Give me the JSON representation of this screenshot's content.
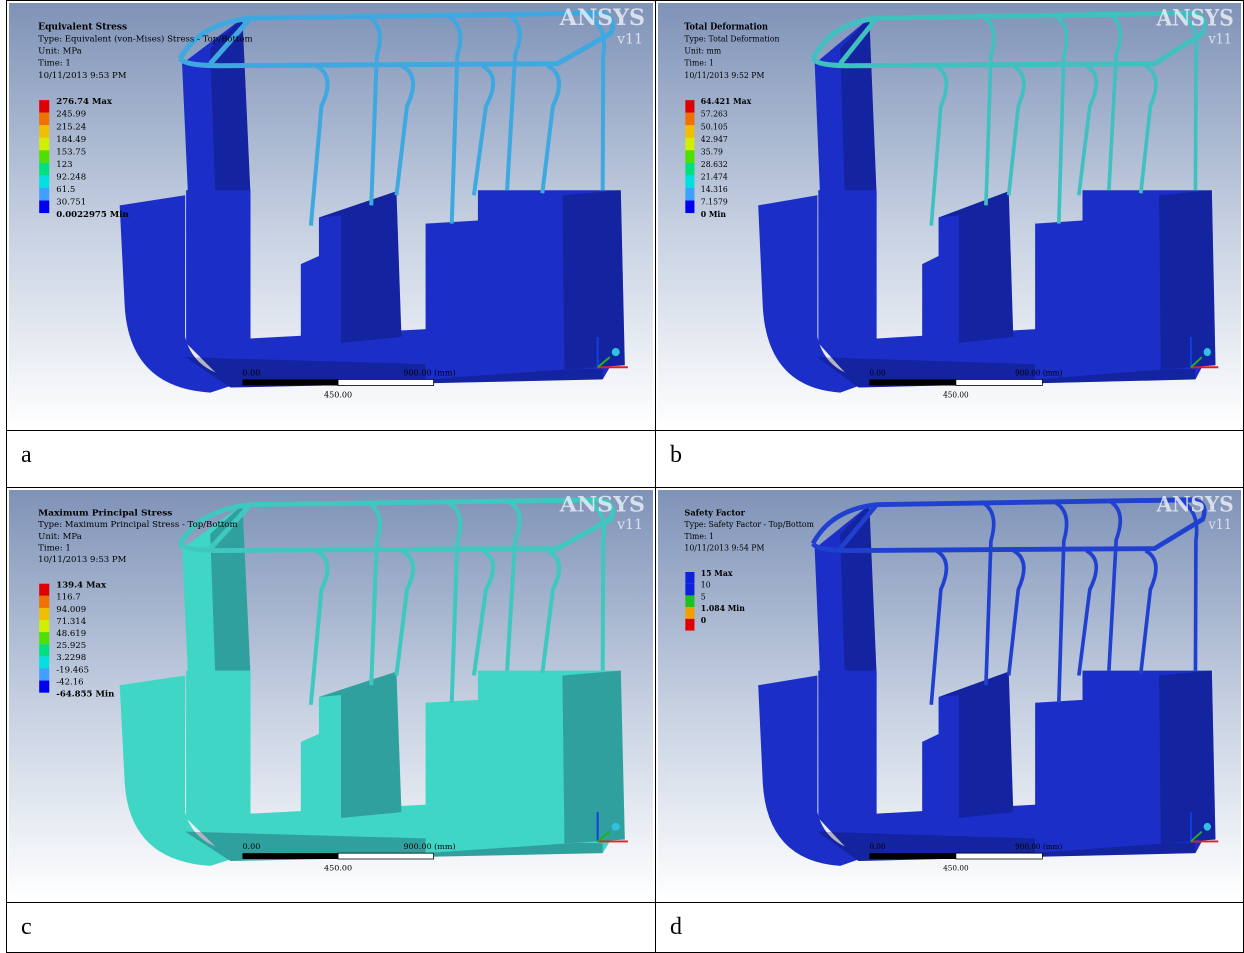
{
  "panels": [
    {
      "label": "a",
      "title": "Equivalent Stress",
      "lines": [
        "Type: Equivalent (von-Mises) Stress - Top/Bottom",
        "Unit: MPa",
        "Time: 1",
        "10/11/2013 9:53 PM"
      ],
      "legend": [
        "276.74 Max",
        "245.99",
        "215.24",
        "184.49",
        "153.75",
        "123",
        "92.248",
        "61.5",
        "30.751",
        "0.0022975 Min"
      ],
      "legend_colors": [
        "#e00000",
        "#f07000",
        "#f0c000",
        "#d0f000",
        "#50e000",
        "#00e080",
        "#00e0e0",
        "#40a0ff",
        "#0000f0"
      ],
      "model_color": "#1b2fc8",
      "tube_color": "#3fa8e0",
      "scale": [
        "0.00",
        "450.00",
        "900.00 (mm)"
      ],
      "logo": "ANSYS",
      "version": "v11"
    },
    {
      "label": "b",
      "title": "Total Deformation",
      "lines": [
        "Type: Total Deformation",
        "Unit: mm",
        "Time: 1",
        "10/11/2013 9:52 PM"
      ],
      "legend": [
        "64.421 Max",
        "57.263",
        "50.105",
        "42.947",
        "35.79",
        "28.632",
        "21.474",
        "14.316",
        "7.1579",
        "0 Min"
      ],
      "legend_colors": [
        "#e00000",
        "#f07000",
        "#f0c000",
        "#d0f000",
        "#50e000",
        "#00e080",
        "#00e0e0",
        "#40a0ff",
        "#0000f0"
      ],
      "model_color": "#1b2fc8",
      "tube_color": "#40c0c0",
      "scale": [
        "0.00",
        "450.00",
        "900.00 (mm)"
      ],
      "logo": "ANSYS",
      "version": "v11"
    },
    {
      "label": "c",
      "title": "Maximum Principal Stress",
      "lines": [
        "Type: Maximum Principal Stress - Top/Bottom",
        "Unit: MPa",
        "Time: 1",
        "10/11/2013 9:53 PM"
      ],
      "legend": [
        "139.4 Max",
        "116.7",
        "94.009",
        "71.314",
        "48.619",
        "25.925",
        "3.2298",
        "-19.465",
        "-42.16",
        "-64.855 Min"
      ],
      "legend_colors": [
        "#e00000",
        "#f07000",
        "#f0c000",
        "#d0f000",
        "#50e000",
        "#00e080",
        "#00e0e0",
        "#40a0ff",
        "#0000f0"
      ],
      "model_color": "#3fd6c6",
      "tube_color": "#3fc8c0",
      "scale": [
        "0.00",
        "450.00",
        "900.00 (mm)"
      ],
      "logo": "ANSYS",
      "version": "v11"
    },
    {
      "label": "d",
      "title": "Safety Factor",
      "lines": [
        "Type: Safety Factor - Top/Bottom",
        "Time: 1",
        "10/11/2013 9:54 PM"
      ],
      "legend": [
        "15 Max",
        "10",
        "5",
        "1.084 Min",
        "0"
      ],
      "legend_colors": [
        "#1020e0",
        "#1020e0",
        "#20c020",
        "#f0a000",
        "#e00000"
      ],
      "model_color": "#1b2fc8",
      "tube_color": "#2040d0",
      "scale": [
        "0.00",
        "450.00",
        "900.00 (mm)"
      ],
      "logo": "ANSYS",
      "version": "v11"
    }
  ]
}
